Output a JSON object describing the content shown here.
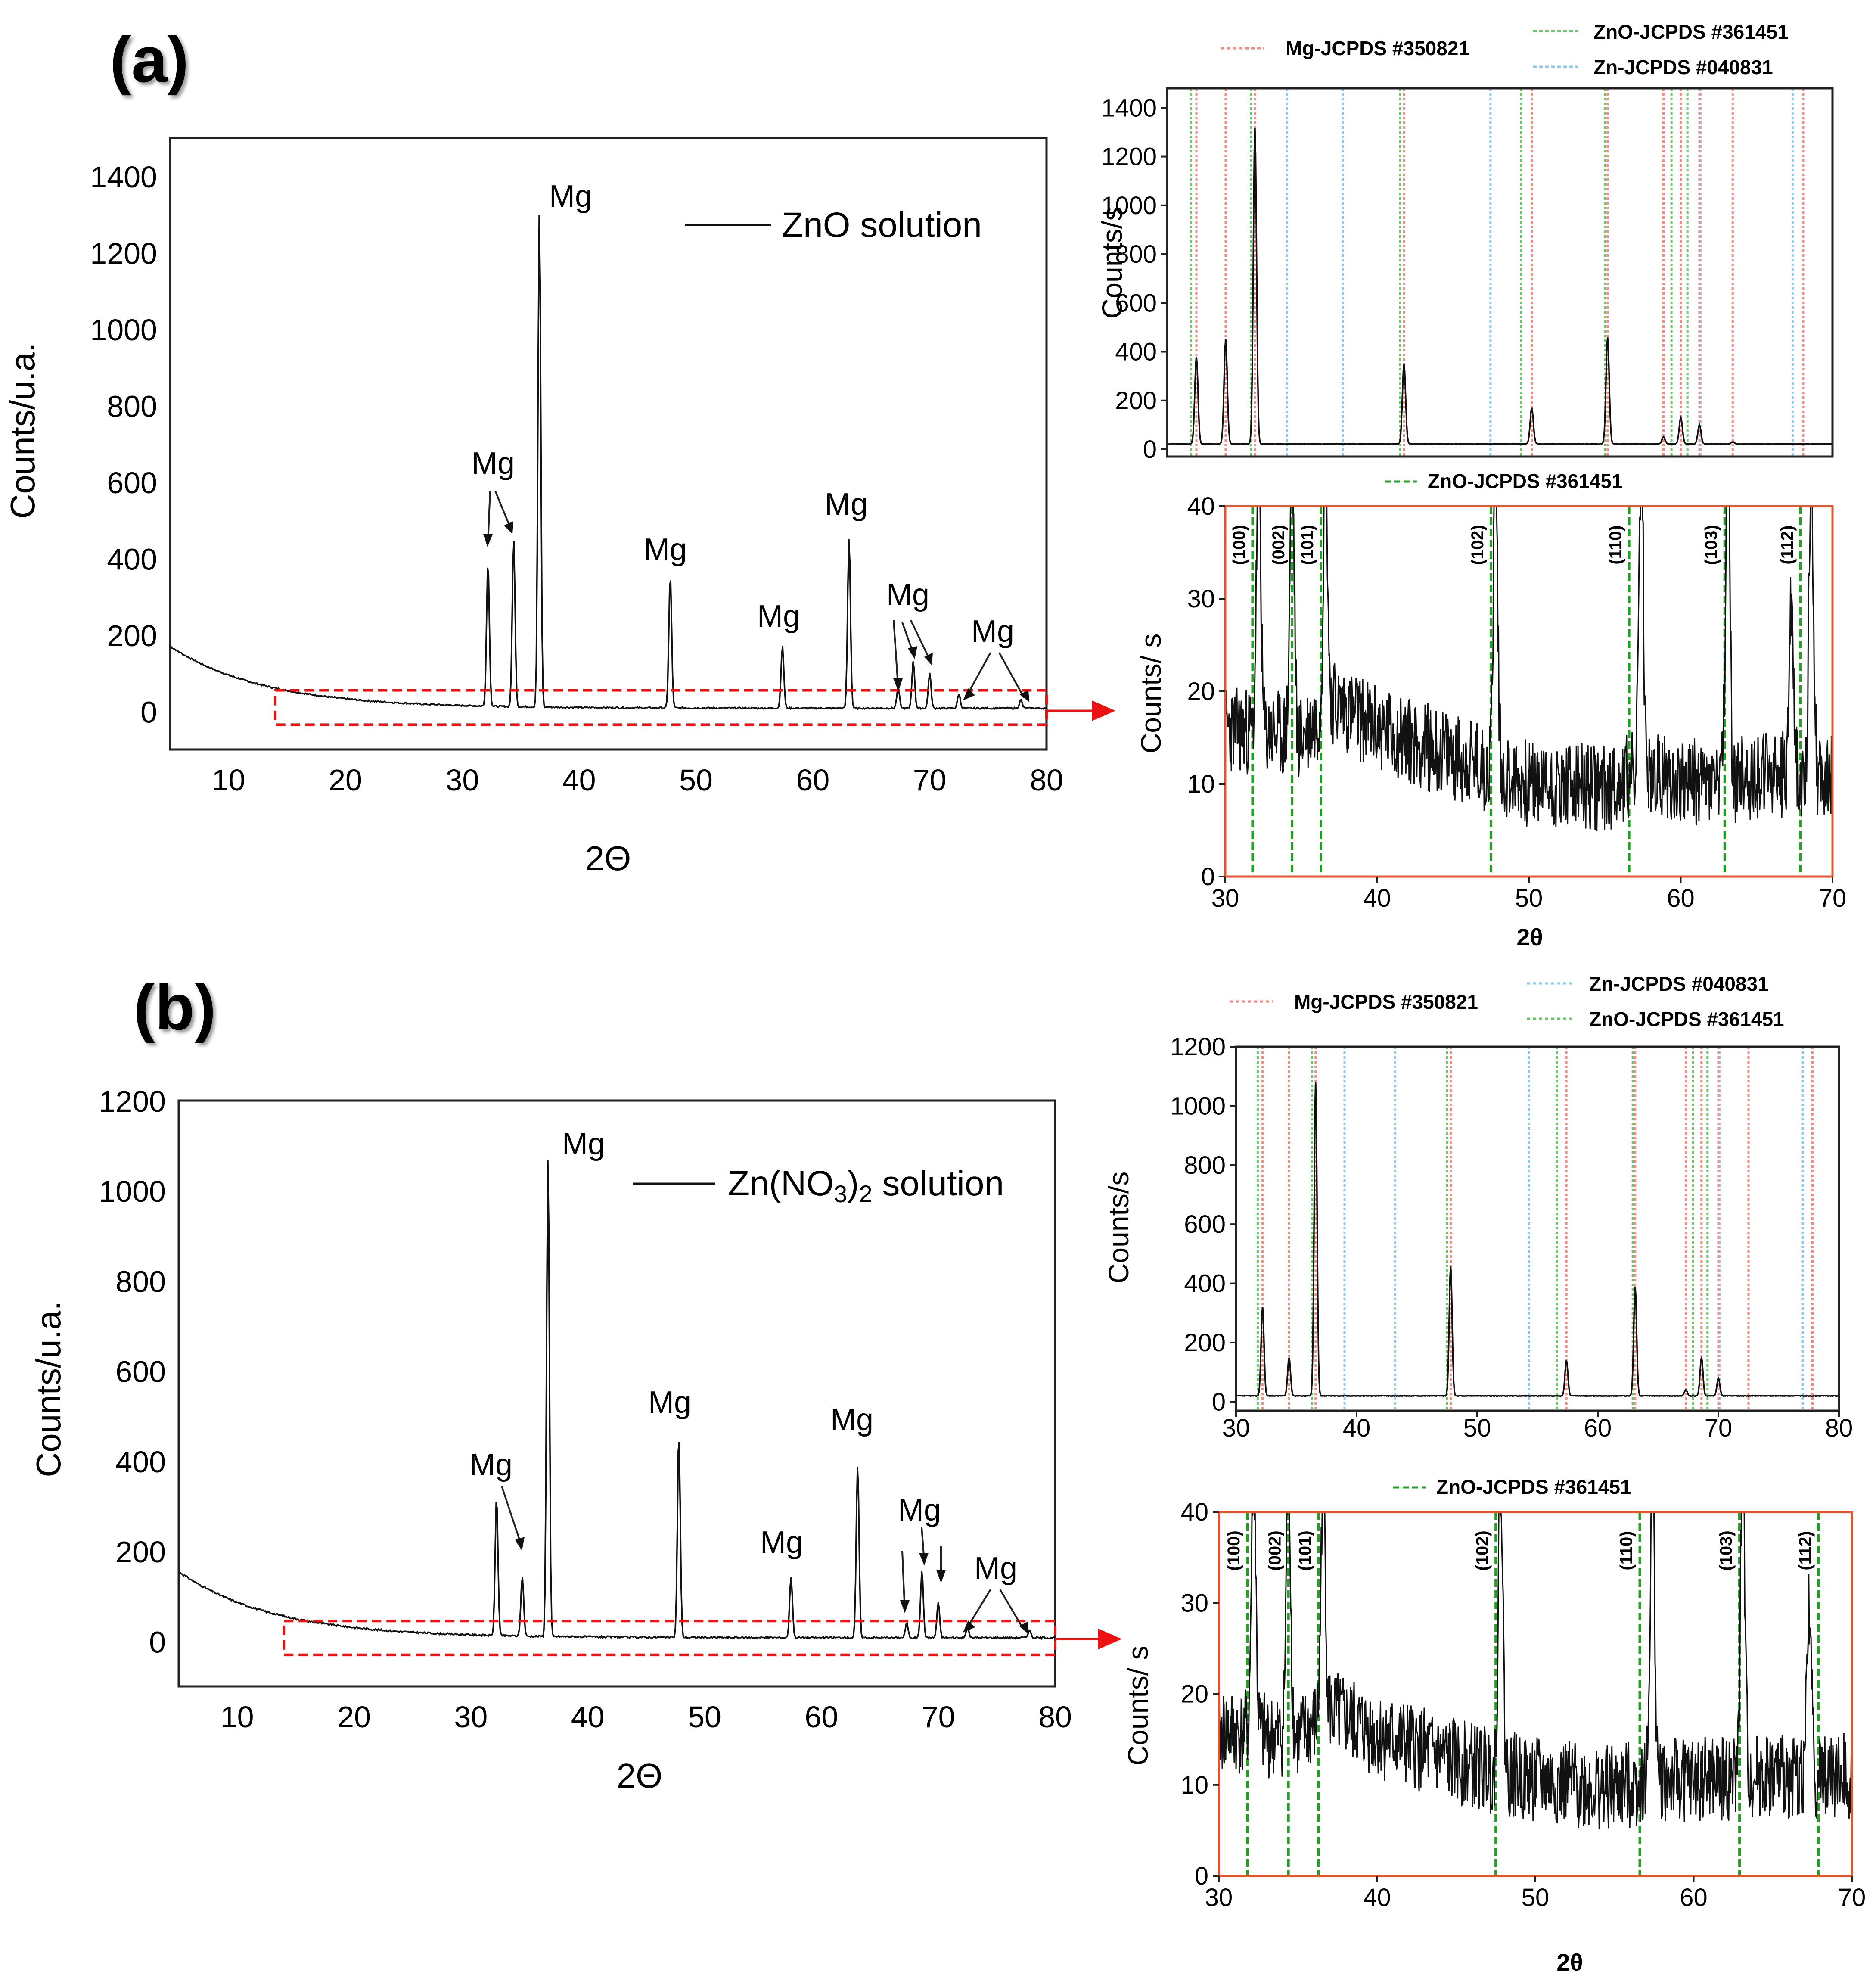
{
  "panels": {
    "a": "(a)",
    "b": "(b)"
  },
  "colors": {
    "mg": "#f28b82",
    "zn": "#8ec9ec",
    "zno": "#6cc46c",
    "zno_dash": "#22a022",
    "trace": "#111111",
    "highlight": "#ee1111",
    "inset_frame": "#e8552c"
  },
  "chart_data": [
    {
      "id": "a_main",
      "type": "line",
      "xlabel": "2Θ",
      "ylabel": "Counts/u.a.",
      "xlim": [
        5,
        80
      ],
      "ylim": [
        -100,
        1500
      ],
      "xticks": [
        10,
        20,
        30,
        40,
        50,
        60,
        70,
        80
      ],
      "yticks": [
        0,
        200,
        400,
        600,
        800,
        1000,
        1200,
        1400
      ],
      "legend": [
        "ZnO solution"
      ],
      "baseline": {
        "start": 170,
        "decay": 8,
        "floor": 8
      },
      "peaks": [
        {
          "x": 32.2,
          "y": 390
        },
        {
          "x": 34.4,
          "y": 450
        },
        {
          "x": 36.6,
          "y": 1310
        },
        {
          "x": 47.8,
          "y": 355
        },
        {
          "x": 57.4,
          "y": 170
        },
        {
          "x": 63.1,
          "y": 455
        },
        {
          "x": 67.3,
          "y": 60
        },
        {
          "x": 68.6,
          "y": 130
        },
        {
          "x": 70.0,
          "y": 100
        },
        {
          "x": 72.5,
          "y": 45
        },
        {
          "x": 77.8,
          "y": 30
        }
      ],
      "peak_labels": [
        "Mg",
        "Mg",
        "Mg",
        "Mg",
        "Mg",
        "Mg",
        "Mg"
      ],
      "highlight_region": {
        "x": [
          14,
          80
        ],
        "y": [
          -35,
          55
        ]
      }
    },
    {
      "id": "a_ref",
      "type": "line",
      "ylabel": "Counts/s",
      "xlim": [
        30,
        80
      ],
      "ylim": [
        -30,
        1480
      ],
      "yticks": [
        0,
        200,
        400,
        600,
        800,
        1000,
        1200,
        1400
      ],
      "legend": [
        "Mg-JCPDS #350821",
        "ZnO-JCPDS #361451",
        "Zn-JCPDS #040831"
      ],
      "baseline": {
        "start": 22,
        "decay": 0,
        "floor": 18
      },
      "peaks": [
        {
          "x": 32.2,
          "y": 380
        },
        {
          "x": 34.4,
          "y": 450
        },
        {
          "x": 36.6,
          "y": 1320
        },
        {
          "x": 47.8,
          "y": 350
        },
        {
          "x": 57.4,
          "y": 170
        },
        {
          "x": 63.1,
          "y": 460
        },
        {
          "x": 67.3,
          "y": 50
        },
        {
          "x": 68.6,
          "y": 130
        },
        {
          "x": 70.0,
          "y": 100
        },
        {
          "x": 72.5,
          "y": 30
        }
      ],
      "ref_mg": [
        32.2,
        34.4,
        36.6,
        47.8,
        57.4,
        63.1,
        67.3,
        68.6,
        70.0,
        72.5,
        77.8
      ],
      "ref_zno": [
        31.8,
        34.4,
        36.3,
        47.5,
        56.6,
        62.9,
        67.9,
        69.1
      ],
      "ref_zn": [
        36.3,
        39.0,
        43.2,
        54.3,
        70.1,
        77.0
      ]
    },
    {
      "id": "a_zoom",
      "type": "line",
      "xlabel": "2θ",
      "ylabel": "Counts/ s",
      "xlim": [
        30,
        70
      ],
      "ylim": [
        0,
        40
      ],
      "xticks": [
        30,
        40,
        50,
        60,
        70
      ],
      "yticks": [
        0,
        10,
        20,
        30,
        40
      ],
      "legend": [
        "ZnO-JCPDS #361451"
      ],
      "baseline": {
        "start": 17,
        "decay": 0,
        "floor": 9
      },
      "trend": [
        [
          30,
          16
        ],
        [
          35,
          15
        ],
        [
          37,
          19
        ],
        [
          40,
          16
        ],
        [
          45,
          13
        ],
        [
          50,
          10
        ],
        [
          55,
          9.5
        ],
        [
          57,
          11
        ],
        [
          62,
          10
        ],
        [
          65,
          11
        ],
        [
          70,
          11
        ]
      ],
      "peaks": [
        {
          "x": 32.2,
          "y": 45
        },
        {
          "x": 34.4,
          "y": 45
        },
        {
          "x": 36.6,
          "y": 45
        },
        {
          "x": 47.8,
          "y": 45
        },
        {
          "x": 57.4,
          "y": 45
        },
        {
          "x": 63.1,
          "y": 45
        },
        {
          "x": 67.3,
          "y": 30
        },
        {
          "x": 68.6,
          "y": 45
        }
      ],
      "ref_zno": [
        31.8,
        34.4,
        36.3,
        47.5,
        56.6,
        62.9,
        67.9
      ],
      "hkl": [
        "(100)",
        "(002)",
        "(101)",
        "(102)",
        "(110)",
        "(103)",
        "(112)"
      ]
    },
    {
      "id": "b_main",
      "type": "line",
      "xlabel": "2Θ",
      "ylabel": "Counts/u.a.",
      "xlim": [
        5,
        80
      ],
      "ylim": [
        -100,
        1200
      ],
      "xticks": [
        10,
        20,
        30,
        40,
        50,
        60,
        70,
        80
      ],
      "yticks": [
        0,
        200,
        400,
        600,
        800,
        1000,
        1200
      ],
      "legend": [
        "Zn(NO3)2 solution"
      ],
      "baseline": {
        "start": 155,
        "decay": 8,
        "floor": 8
      },
      "peaks": [
        {
          "x": 32.2,
          "y": 320
        },
        {
          "x": 34.4,
          "y": 145
        },
        {
          "x": 36.6,
          "y": 1080
        },
        {
          "x": 47.8,
          "y": 460
        },
        {
          "x": 57.4,
          "y": 145
        },
        {
          "x": 63.1,
          "y": 390
        },
        {
          "x": 67.3,
          "y": 40
        },
        {
          "x": 68.6,
          "y": 155
        },
        {
          "x": 70.0,
          "y": 85
        },
        {
          "x": 72.5,
          "y": 30
        },
        {
          "x": 77.8,
          "y": 25
        }
      ],
      "peak_labels": [
        "Mg",
        "Mg",
        "Mg",
        "Mg",
        "Mg",
        "Mg",
        "Mg"
      ],
      "highlight_region": {
        "x": [
          14,
          80
        ],
        "y": [
          -30,
          45
        ]
      }
    },
    {
      "id": "b_ref",
      "type": "line",
      "ylabel": "Counts/s",
      "xlim": [
        30,
        80
      ],
      "ylim": [
        -30,
        1200
      ],
      "xticks": [
        30,
        40,
        50,
        60,
        70,
        80
      ],
      "yticks": [
        0,
        200,
        400,
        600,
        800,
        1000,
        1200
      ],
      "legend": [
        "Mg-JCPDS #350821",
        "Zn-JCPDS #040831",
        "ZnO-JCPDS #361451"
      ],
      "baseline": {
        "start": 20,
        "decay": 0,
        "floor": 16
      },
      "peaks": [
        {
          "x": 32.2,
          "y": 320
        },
        {
          "x": 34.4,
          "y": 150
        },
        {
          "x": 36.6,
          "y": 1080
        },
        {
          "x": 47.8,
          "y": 460
        },
        {
          "x": 57.4,
          "y": 140
        },
        {
          "x": 63.1,
          "y": 390
        },
        {
          "x": 67.3,
          "y": 40
        },
        {
          "x": 68.6,
          "y": 150
        },
        {
          "x": 70.0,
          "y": 80
        }
      ],
      "ref_mg": [
        32.2,
        34.4,
        36.6,
        47.8,
        57.4,
        63.1,
        67.3,
        68.6,
        70.0,
        72.5,
        77.8
      ],
      "ref_zno": [
        31.8,
        34.4,
        36.3,
        47.5,
        56.6,
        62.9,
        67.9,
        69.1
      ],
      "ref_zn": [
        36.3,
        39.0,
        43.2,
        54.3,
        70.1,
        77.0
      ]
    },
    {
      "id": "b_zoom",
      "type": "line",
      "xlabel": "2θ",
      "ylabel": "Counts/ s",
      "xlim": [
        30,
        70
      ],
      "ylim": [
        0,
        40
      ],
      "xticks": [
        30,
        40,
        50,
        60,
        70
      ],
      "yticks": [
        0,
        10,
        20,
        30,
        40
      ],
      "legend": [
        "ZnO-JCPDS #361451"
      ],
      "baseline": {
        "start": 17,
        "decay": 0,
        "floor": 9
      },
      "trend": [
        [
          30,
          16
        ],
        [
          35,
          15
        ],
        [
          37,
          18
        ],
        [
          40,
          15.5
        ],
        [
          45,
          12.5
        ],
        [
          50,
          10.5
        ],
        [
          55,
          9.5
        ],
        [
          57,
          10.5
        ],
        [
          62,
          10.5
        ],
        [
          65,
          11
        ],
        [
          70,
          11
        ]
      ],
      "peaks": [
        {
          "x": 32.2,
          "y": 45
        },
        {
          "x": 34.4,
          "y": 45
        },
        {
          "x": 36.6,
          "y": 45
        },
        {
          "x": 47.8,
          "y": 45
        },
        {
          "x": 57.4,
          "y": 45
        },
        {
          "x": 63.1,
          "y": 45
        },
        {
          "x": 67.3,
          "y": 30
        }
      ],
      "ref_zno": [
        31.8,
        34.4,
        36.3,
        47.5,
        56.6,
        62.9,
        67.9
      ],
      "hkl": [
        "(100)",
        "(002)",
        "(101)",
        "(102)",
        "(110)",
        "(103)",
        "(112)"
      ]
    }
  ]
}
